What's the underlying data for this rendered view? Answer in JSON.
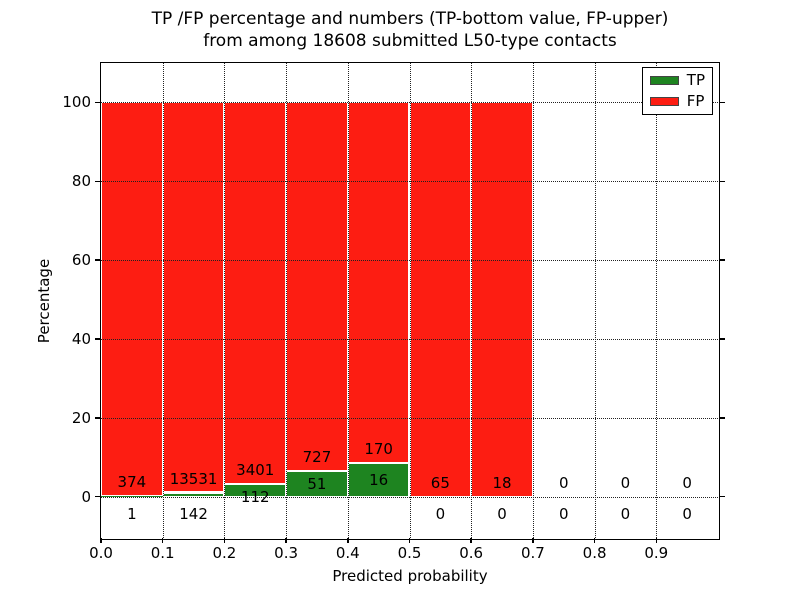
{
  "figure": {
    "title_line1": "TP /FP percentage and numbers (TP-bottom value, FP-upper)",
    "title_line2": "from among 18608 submitted L50-type contacts"
  },
  "chart_data": {
    "type": "bar",
    "stacked": true,
    "title": "TP /FP percentage and numbers (TP-bottom value, FP-upper)\nfrom among 18608 submitted L50-type contacts",
    "xlabel": "Predicted probability",
    "ylabel": "Percentage",
    "total_contacts": 18608,
    "xlim": [
      0.0,
      1.0
    ],
    "ylim": [
      -10.5,
      110
    ],
    "grid": true,
    "legend_position": "upper right",
    "bin_width": 0.1,
    "bin_edges": [
      0.0,
      0.1,
      0.2,
      0.3,
      0.4,
      0.5,
      0.6,
      0.7,
      0.8,
      0.9,
      1.0
    ],
    "xticks": [
      0.0,
      0.1,
      0.2,
      0.3,
      0.4,
      0.5,
      0.6,
      0.7,
      0.8,
      0.9
    ],
    "xtick_labels": [
      "0.0",
      "0.1",
      "0.2",
      "0.3",
      "0.4",
      "0.5",
      "0.6",
      "0.7",
      "0.8",
      "0.9"
    ],
    "yticks": [
      0,
      20,
      40,
      60,
      80,
      100
    ],
    "ytick_labels": [
      "0",
      "20",
      "40",
      "60",
      "80",
      "100"
    ],
    "series": [
      {
        "name": "TP",
        "color": "#1e8420",
        "counts": [
          1,
          142,
          112,
          51,
          16,
          0,
          0,
          0,
          0,
          0
        ],
        "percentages": [
          0.27,
          1.04,
          3.19,
          6.56,
          8.6,
          0,
          0,
          0,
          0,
          0
        ]
      },
      {
        "name": "FP",
        "color": "#fd1d12",
        "counts": [
          374,
          13531,
          3401,
          727,
          170,
          65,
          18,
          0,
          0,
          0
        ],
        "percentages": [
          99.73,
          98.96,
          96.81,
          93.44,
          91.4,
          100,
          100,
          0,
          0,
          0
        ]
      }
    ]
  }
}
